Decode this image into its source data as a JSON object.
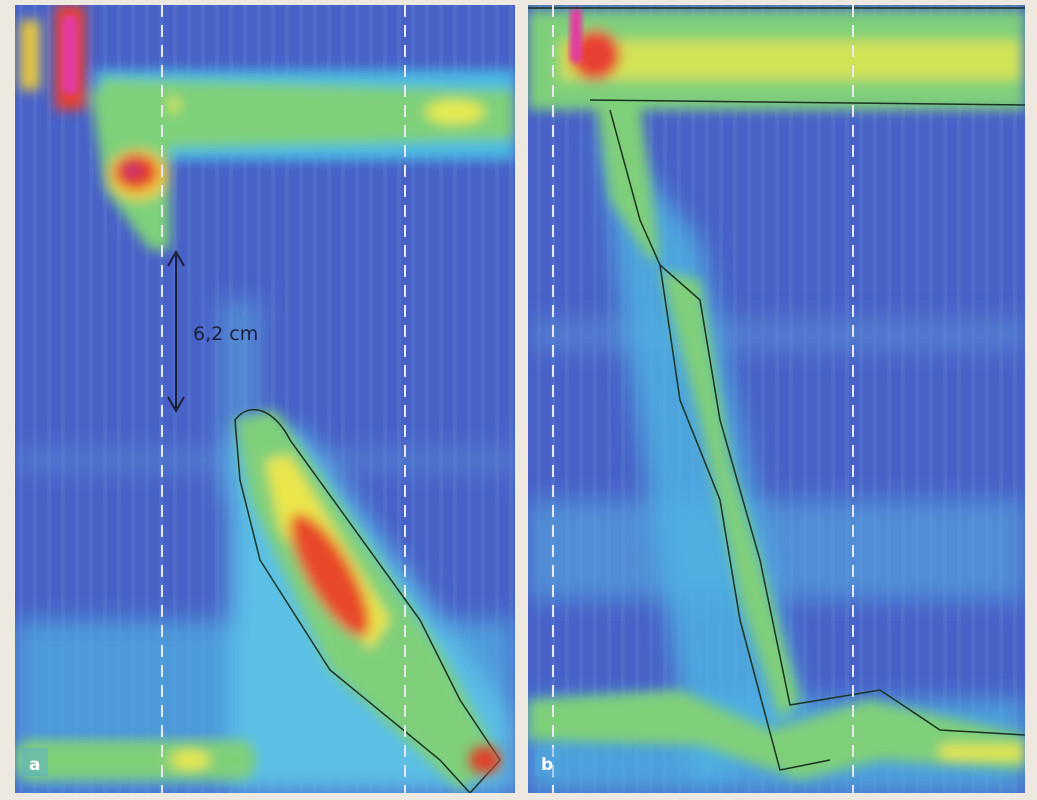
{
  "panels": [
    {
      "label": "a",
      "annotation": "6,2 cm"
    },
    {
      "label": "b"
    }
  ]
}
